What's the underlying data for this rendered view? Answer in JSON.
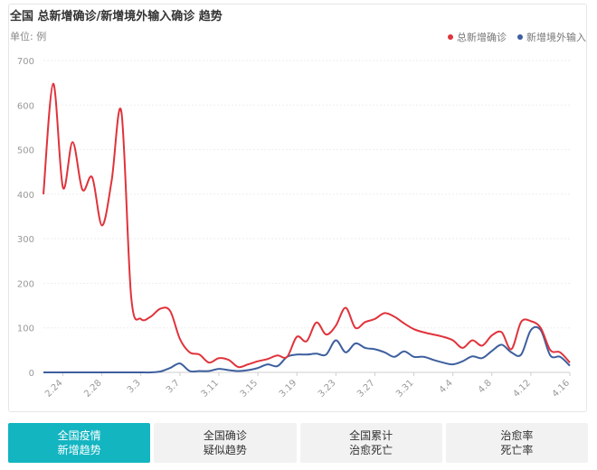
{
  "header": {
    "title": "全国 总新增确诊/新增境外输入确诊 趋势",
    "unit": "单位: 例"
  },
  "colors": {
    "total": "#e0333b",
    "imported": "#3d5f9e",
    "active_tab": "#13b5c1"
  },
  "tabs": [
    {
      "line1": "全国疫情",
      "line2": "新增趋势",
      "active": true
    },
    {
      "line1": "全国确诊",
      "line2": "疑似趋势",
      "active": false
    },
    {
      "line1": "全国累计",
      "line2": "治愈死亡",
      "active": false
    },
    {
      "line1": "治愈率",
      "line2": "死亡率",
      "active": false
    }
  ],
  "chart_data": {
    "type": "line",
    "ylabel": "",
    "ylim": [
      0,
      700
    ],
    "yticks": [
      "0",
      "100",
      "200",
      "300",
      "400",
      "500",
      "600",
      "700"
    ],
    "xlabels": [
      "2.24",
      "2.28",
      "3.3",
      "3.7",
      "3.11",
      "3.15",
      "3.19",
      "3.23",
      "3.27",
      "3.31",
      "4.4",
      "4.8",
      "4.12",
      "4.16"
    ],
    "xlabel_index": [
      2,
      6,
      10,
      14,
      18,
      22,
      26,
      30,
      34,
      38,
      42,
      46,
      50,
      54
    ],
    "legend_position": "top-right",
    "grid": true,
    "series": [
      {
        "name": "总新增确诊",
        "values": [
          400,
          648,
          415,
          517,
          410,
          438,
          330,
          430,
          585,
          170,
          120,
          125,
          143,
          138,
          75,
          45,
          40,
          22,
          32,
          28,
          12,
          18,
          25,
          30,
          38,
          35,
          80,
          70,
          112,
          85,
          105,
          145,
          100,
          113,
          120,
          133,
          125,
          110,
          97,
          90,
          85,
          80,
          72,
          55,
          72,
          60,
          83,
          90,
          52,
          113,
          115,
          100,
          50,
          45,
          22
        ]
      },
      {
        "name": "新增境外输入",
        "values": [
          0,
          0,
          0,
          0,
          0,
          0,
          0,
          0,
          0,
          0,
          0,
          0,
          2,
          10,
          20,
          3,
          3,
          3,
          8,
          5,
          3,
          5,
          10,
          18,
          14,
          35,
          40,
          40,
          42,
          40,
          72,
          45,
          65,
          55,
          52,
          45,
          35,
          47,
          35,
          35,
          28,
          22,
          18,
          25,
          36,
          32,
          48,
          62,
          45,
          40,
          95,
          95,
          38,
          35,
          15
        ]
      }
    ]
  }
}
